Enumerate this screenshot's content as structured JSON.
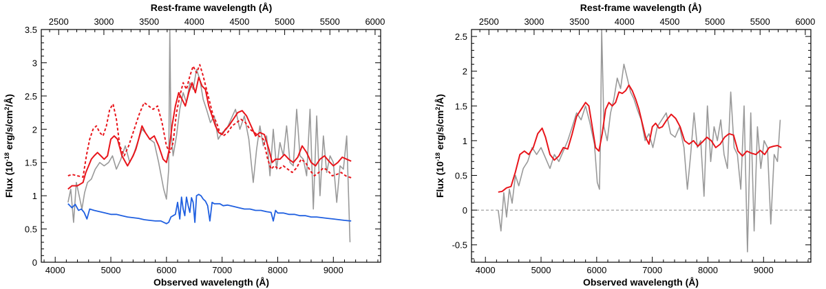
{
  "colors": {
    "observed": "#999999",
    "model": "#e8141a",
    "template_blue": "#1f5fe0",
    "frame": "#000000",
    "zero_line": "#888888"
  },
  "chart_data": [
    {
      "type": "line",
      "panel": "left",
      "xlabel": "Observed wavelength (Å)",
      "ylabel_main": "Flux (10",
      "ylabel_exp": "-18",
      "ylabel_mid": " erg/s/cm",
      "ylabel_exp2": "2",
      "ylabel_tail": "/Å)",
      "top_xlabel": "Rest-frame wavelength (Å)",
      "xlim": [
        3750,
        9850
      ],
      "ylim": [
        0,
        3.5
      ],
      "x_ticks": [
        4000,
        5000,
        6000,
        7000,
        8000,
        9000
      ],
      "y_ticks": [
        0,
        0.5,
        1,
        1.5,
        2,
        2.5,
        3,
        3.5
      ],
      "y_tick_labels": [
        "0",
        "0.5",
        "1",
        "1.5",
        "2",
        "2.5",
        "3",
        "3.5"
      ],
      "top_ticks": [
        2500,
        3000,
        3500,
        4000,
        4500,
        5000,
        5500,
        6000
      ],
      "rest_frame_scale": 1.625,
      "series": [
        {
          "style": "observed",
          "x": [
            4230,
            4280,
            4330,
            4380,
            4430,
            4480,
            4530,
            4580,
            4650,
            4720,
            4800,
            4880,
            4960,
            5030,
            5100,
            5180,
            5260,
            5340,
            5420,
            5500,
            5560,
            5620,
            5700,
            5780,
            5860,
            5950,
            6000,
            6040,
            6060,
            6080,
            6120,
            6180,
            6240,
            6300,
            6360,
            6420,
            6480,
            6540,
            6600,
            6660,
            6720,
            6790,
            6860,
            6930,
            7000,
            7080,
            7160,
            7240,
            7320,
            7400,
            7480,
            7560,
            7620,
            7680,
            7740,
            7800,
            7860,
            7920,
            7980,
            8040,
            8100,
            8160,
            8220,
            8280,
            8340,
            8400,
            8460,
            8520,
            8580,
            8640,
            8700,
            8760,
            8820,
            8880,
            8940,
            9000,
            9060,
            9120,
            9180,
            9240,
            9300
          ],
          "y": [
            0.9,
            1.1,
            0.6,
            1.2,
            1.0,
            0.8,
            1.05,
            1.2,
            1.25,
            1.4,
            1.5,
            1.45,
            1.5,
            1.6,
            1.4,
            1.55,
            1.75,
            1.5,
            1.65,
            1.85,
            2.0,
            1.95,
            1.85,
            1.8,
            1.5,
            1.1,
            0.95,
            1.4,
            3.5,
            2.0,
            1.6,
            1.9,
            2.3,
            2.55,
            2.4,
            2.7,
            2.6,
            2.9,
            2.75,
            2.45,
            2.3,
            2.1,
            2.2,
            1.85,
            1.95,
            2.0,
            2.15,
            2.3,
            2.0,
            2.2,
            1.85,
            1.2,
            1.7,
            2.05,
            1.75,
            1.9,
            1.3,
            2.0,
            1.4,
            1.8,
            1.6,
            2.05,
            1.5,
            1.45,
            2.3,
            1.6,
            1.55,
            1.3,
            2.3,
            0.8,
            2.2,
            1.0,
            1.9,
            1.35,
            1.6,
            1.5,
            0.9,
            1.45,
            1.4,
            1.9,
            0.3
          ]
        },
        {
          "style": "model",
          "x": [
            4230,
            4300,
            4400,
            4500,
            4550,
            4600,
            4650,
            4700,
            4760,
            4820,
            4880,
            4940,
            5000,
            5060,
            5120,
            5200,
            5300,
            5400,
            5450,
            5500,
            5560,
            5620,
            5700,
            5780,
            5860,
            5940,
            6000,
            6050,
            6100,
            6160,
            6220,
            6280,
            6340,
            6400,
            6460,
            6520,
            6580,
            6640,
            6700,
            6760,
            6820,
            6880,
            6940,
            7000,
            7060,
            7120,
            7200,
            7280,
            7360,
            7440,
            7520,
            7600,
            7680,
            7760,
            7840,
            7900,
            7960,
            8040,
            8120,
            8200,
            8280,
            8360,
            8440,
            8520,
            8600,
            8680,
            8760,
            8840,
            8920,
            9000,
            9080,
            9160,
            9240,
            9320
          ],
          "y": [
            1.1,
            1.15,
            1.15,
            1.2,
            1.35,
            1.45,
            1.55,
            1.6,
            1.65,
            1.6,
            1.55,
            1.6,
            1.85,
            1.9,
            1.85,
            1.6,
            1.45,
            1.6,
            1.7,
            1.85,
            2.05,
            1.95,
            1.85,
            1.9,
            1.75,
            1.55,
            1.5,
            1.7,
            2.05,
            2.35,
            2.55,
            2.45,
            2.35,
            2.55,
            2.7,
            2.55,
            2.78,
            2.65,
            2.6,
            2.35,
            2.2,
            2.05,
            1.95,
            1.92,
            2.0,
            2.05,
            2.15,
            2.25,
            2.28,
            2.2,
            2.05,
            1.9,
            1.95,
            1.92,
            1.7,
            1.5,
            1.55,
            1.55,
            1.62,
            1.55,
            1.5,
            1.58,
            1.75,
            1.65,
            1.5,
            1.45,
            1.55,
            1.6,
            1.52,
            1.45,
            1.5,
            1.58,
            1.55,
            1.52
          ]
        },
        {
          "style": "model_dashed",
          "x": [
            4230,
            4300,
            4400,
            4500,
            4560,
            4620,
            4680,
            4740,
            4800,
            4860,
            4920,
            4980,
            5040,
            5100,
            5160,
            5240,
            5320,
            5400,
            5460,
            5520,
            5600,
            5680,
            5760,
            5840,
            5920,
            6000,
            6060,
            6120,
            6180,
            6240,
            6300,
            6360,
            6420,
            6480,
            6540,
            6600,
            6660,
            6720,
            6780,
            6840,
            6900,
            6960,
            7020,
            7100,
            7180,
            7260,
            7340,
            7420,
            7500,
            7580,
            7660,
            7740,
            7820,
            7880,
            7940,
            8020,
            8100,
            8180,
            8260,
            8340,
            8420,
            8500,
            8580,
            8660,
            8740,
            8820,
            8900,
            8980,
            9060,
            9140,
            9220,
            9320
          ],
          "y": [
            1.3,
            1.32,
            1.3,
            1.28,
            1.6,
            1.85,
            2.0,
            2.05,
            1.95,
            1.9,
            2.05,
            2.3,
            2.38,
            2.15,
            1.75,
            1.6,
            1.75,
            1.95,
            2.1,
            2.25,
            2.4,
            2.35,
            2.3,
            2.35,
            2.1,
            1.75,
            1.65,
            1.8,
            2.25,
            2.5,
            2.7,
            2.6,
            2.8,
            2.95,
            2.85,
            2.97,
            2.8,
            2.6,
            2.4,
            2.2,
            2.1,
            1.95,
            1.9,
            1.95,
            2.05,
            2.1,
            2.15,
            2.1,
            2.0,
            1.95,
            1.9,
            1.85,
            1.55,
            1.4,
            1.45,
            1.4,
            1.45,
            1.4,
            1.35,
            1.42,
            1.55,
            1.5,
            1.38,
            1.3,
            1.35,
            1.42,
            1.38,
            1.3,
            1.32,
            1.35,
            1.3,
            1.27
          ]
        },
        {
          "style": "template_blue",
          "x": [
            4230,
            4300,
            4360,
            4420,
            4470,
            4520,
            4570,
            4620,
            4700,
            4800,
            4900,
            5000,
            5100,
            5200,
            5300,
            5400,
            5500,
            5600,
            5700,
            5800,
            5900,
            6000,
            6040,
            6080,
            6120,
            6160,
            6200,
            6240,
            6270,
            6300,
            6330,
            6360,
            6390,
            6420,
            6450,
            6480,
            6510,
            6540,
            6580,
            6620,
            6660,
            6700,
            6740,
            6780,
            6820,
            6860,
            6900,
            6960,
            7020,
            7100,
            7200,
            7300,
            7400,
            7500,
            7600,
            7700,
            7800,
            7880,
            7920,
            7960,
            8000,
            8100,
            8200,
            8300,
            8400,
            8500,
            8600,
            8700,
            8800,
            8900,
            9000,
            9100,
            9200,
            9320
          ],
          "y": [
            0.88,
            0.82,
            0.87,
            0.78,
            0.8,
            0.75,
            0.65,
            0.8,
            0.78,
            0.76,
            0.74,
            0.72,
            0.72,
            0.7,
            0.68,
            0.67,
            0.66,
            0.64,
            0.63,
            0.62,
            0.62,
            0.58,
            0.6,
            0.68,
            0.7,
            0.72,
            0.9,
            0.65,
            0.98,
            0.8,
            0.7,
            0.98,
            0.85,
            0.75,
            0.97,
            0.9,
            0.6,
            1.0,
            1.02,
            1.0,
            0.95,
            0.92,
            0.85,
            0.62,
            0.9,
            0.88,
            0.88,
            0.88,
            0.85,
            0.86,
            0.84,
            0.82,
            0.8,
            0.8,
            0.78,
            0.78,
            0.76,
            0.75,
            0.62,
            0.78,
            0.74,
            0.74,
            0.72,
            0.72,
            0.7,
            0.7,
            0.68,
            0.68,
            0.67,
            0.66,
            0.65,
            0.64,
            0.63,
            0.62
          ]
        }
      ]
    },
    {
      "type": "line",
      "panel": "right",
      "xlabel": "Observed wavelength (Å)",
      "ylabel_main": "Flux (10",
      "ylabel_exp": "-18",
      "ylabel_mid": " erg/s/cm",
      "ylabel_exp2": "2",
      "ylabel_tail": "/Å)",
      "top_xlabel": "Rest-frame wavelength (Å)",
      "xlim": [
        3750,
        9850
      ],
      "ylim": [
        -0.75,
        2.6
      ],
      "x_ticks": [
        4000,
        5000,
        6000,
        7000,
        8000,
        9000
      ],
      "y_ticks": [
        -0.5,
        0,
        0.5,
        1,
        1.5,
        2,
        2.5
      ],
      "y_tick_labels": [
        "-0.5",
        "0",
        "0.5",
        "1",
        "1.5",
        "2",
        "2.5"
      ],
      "top_ticks": [
        2500,
        3000,
        3500,
        4000,
        4500,
        5000,
        5500,
        6000
      ],
      "rest_frame_scale": 1.625,
      "zero_line": 0,
      "series": [
        {
          "style": "observed",
          "x": [
            4230,
            4280,
            4330,
            4380,
            4430,
            4480,
            4540,
            4600,
            4680,
            4760,
            4840,
            4920,
            5000,
            5080,
            5160,
            5240,
            5320,
            5400,
            5480,
            5560,
            5640,
            5720,
            5800,
            5880,
            5960,
            6010,
            6050,
            6070,
            6090,
            6130,
            6190,
            6250,
            6310,
            6370,
            6430,
            6490,
            6550,
            6610,
            6670,
            6730,
            6800,
            6870,
            6940,
            7010,
            7090,
            7170,
            7250,
            7330,
            7410,
            7490,
            7570,
            7630,
            7690,
            7750,
            7810,
            7870,
            7930,
            7990,
            8050,
            8110,
            8170,
            8230,
            8290,
            8350,
            8410,
            8470,
            8530,
            8590,
            8650,
            8710,
            8770,
            8830,
            8890,
            8950,
            9010,
            9070,
            9130,
            9190,
            9250,
            9300
          ],
          "y": [
            0.0,
            -0.3,
            0.25,
            -0.1,
            0.3,
            0.1,
            0.5,
            0.35,
            0.6,
            0.7,
            0.9,
            0.8,
            0.9,
            0.75,
            0.6,
            0.8,
            0.7,
            0.85,
            1.0,
            1.2,
            1.4,
            1.3,
            1.5,
            1.25,
            0.95,
            0.4,
            0.3,
            1.1,
            2.6,
            1.2,
            1.0,
            1.4,
            1.6,
            1.9,
            1.75,
            2.1,
            1.9,
            1.7,
            1.6,
            1.45,
            1.3,
            1.0,
            1.1,
            0.9,
            1.2,
            1.3,
            1.4,
            1.1,
            1.05,
            1.2,
            0.9,
            0.3,
            0.8,
            1.4,
            0.9,
            1.0,
            0.2,
            1.5,
            0.7,
            1.2,
            1.0,
            1.3,
            0.8,
            0.6,
            1.7,
            0.9,
            0.8,
            0.3,
            1.5,
            -0.6,
            1.4,
            -0.3,
            1.2,
            0.6,
            1.0,
            0.9,
            -0.2,
            0.8,
            0.7,
            1.3
          ]
        },
        {
          "style": "model",
          "x": [
            4230,
            4300,
            4380,
            4460,
            4540,
            4620,
            4700,
            4780,
            4860,
            4940,
            5020,
            5080,
            5160,
            5240,
            5320,
            5400,
            5480,
            5560,
            5640,
            5720,
            5800,
            5860,
            5920,
            5980,
            6040,
            6100,
            6160,
            6220,
            6280,
            6340,
            6400,
            6460,
            6520,
            6580,
            6640,
            6700,
            6760,
            6820,
            6880,
            6940,
            7000,
            7060,
            7120,
            7180,
            7260,
            7340,
            7420,
            7500,
            7580,
            7660,
            7740,
            7820,
            7900,
            7980,
            8060,
            8140,
            8220,
            8300,
            8380,
            8460,
            8540,
            8620,
            8700,
            8780,
            8860,
            8940,
            9020,
            9100,
            9180,
            9250,
            9320
          ],
          "y": [
            0.26,
            0.27,
            0.32,
            0.34,
            0.55,
            0.8,
            0.85,
            0.8,
            0.9,
            1.1,
            1.18,
            1.05,
            0.8,
            0.72,
            0.78,
            0.9,
            0.88,
            1.1,
            1.35,
            1.45,
            1.55,
            1.5,
            1.2,
            0.9,
            0.85,
            1.1,
            1.45,
            1.55,
            1.5,
            1.55,
            1.7,
            1.68,
            1.72,
            1.8,
            1.72,
            1.6,
            1.45,
            1.25,
            1.05,
            0.95,
            1.2,
            1.25,
            1.18,
            1.2,
            1.3,
            1.38,
            1.32,
            1.2,
            1.0,
            0.95,
            1.0,
            0.92,
            0.98,
            1.05,
            1.0,
            0.9,
            0.95,
            1.05,
            1.1,
            1.08,
            0.85,
            0.78,
            0.85,
            0.82,
            0.8,
            0.86,
            0.8,
            0.9,
            0.92,
            0.93,
            0.9
          ]
        }
      ]
    }
  ]
}
